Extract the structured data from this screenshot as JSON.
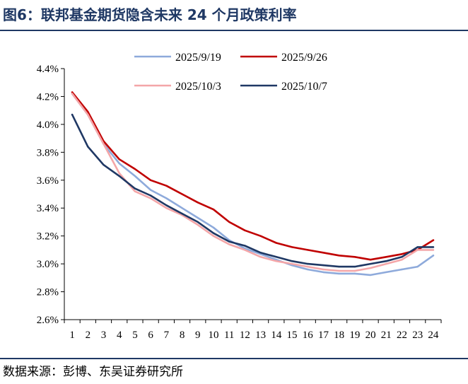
{
  "header": {
    "title": "图6：联邦基金期货隐含未来 24 个月政策利率"
  },
  "footer": {
    "source": "数据来源：彭博、东吴证券研究所"
  },
  "chart_data": {
    "type": "line",
    "title": "",
    "xlabel": "",
    "ylabel": "",
    "x": [
      1,
      2,
      3,
      4,
      5,
      6,
      7,
      8,
      9,
      10,
      11,
      12,
      13,
      14,
      15,
      16,
      17,
      18,
      19,
      20,
      21,
      22,
      23,
      24
    ],
    "ylim": [
      2.6,
      4.4
    ],
    "yticks": [
      2.6,
      2.8,
      3.0,
      3.2,
      3.4,
      3.6,
      3.8,
      4.0,
      4.2,
      4.4
    ],
    "ytick_labels": [
      "2.6%",
      "2.8%",
      "3.0%",
      "3.2%",
      "3.4%",
      "3.6%",
      "3.8%",
      "4.0%",
      "4.2%",
      "4.4%"
    ],
    "grid": false,
    "legend_position": "top",
    "series": [
      {
        "name": "2025/9/19",
        "color": "#8eaadb",
        "values": [
          4.22,
          4.07,
          3.86,
          3.72,
          3.63,
          3.53,
          3.47,
          3.4,
          3.33,
          3.26,
          3.17,
          3.11,
          3.07,
          3.03,
          2.99,
          2.96,
          2.94,
          2.93,
          2.93,
          2.92,
          2.94,
          2.96,
          2.98,
          3.06
        ]
      },
      {
        "name": "2025/9/26",
        "color": "#c00000",
        "values": [
          4.23,
          4.09,
          3.88,
          3.75,
          3.68,
          3.6,
          3.56,
          3.5,
          3.44,
          3.39,
          3.3,
          3.24,
          3.2,
          3.15,
          3.12,
          3.1,
          3.08,
          3.06,
          3.05,
          3.03,
          3.05,
          3.07,
          3.1,
          3.17
        ]
      },
      {
        "name": "2025/10/3",
        "color": "#f4a6a8",
        "values": [
          4.22,
          4.07,
          3.86,
          3.65,
          3.52,
          3.47,
          3.4,
          3.35,
          3.28,
          3.2,
          3.14,
          3.1,
          3.05,
          3.02,
          3.0,
          2.98,
          2.96,
          2.95,
          2.95,
          2.97,
          3.0,
          3.03,
          3.1,
          3.1
        ]
      },
      {
        "name": "2025/10/7",
        "color": "#1f3864",
        "values": [
          4.07,
          3.84,
          3.71,
          3.63,
          3.54,
          3.49,
          3.42,
          3.36,
          3.3,
          3.22,
          3.16,
          3.13,
          3.08,
          3.05,
          3.02,
          3.0,
          2.99,
          2.98,
          2.98,
          3.0,
          3.02,
          3.05,
          3.12,
          3.12
        ]
      }
    ]
  }
}
